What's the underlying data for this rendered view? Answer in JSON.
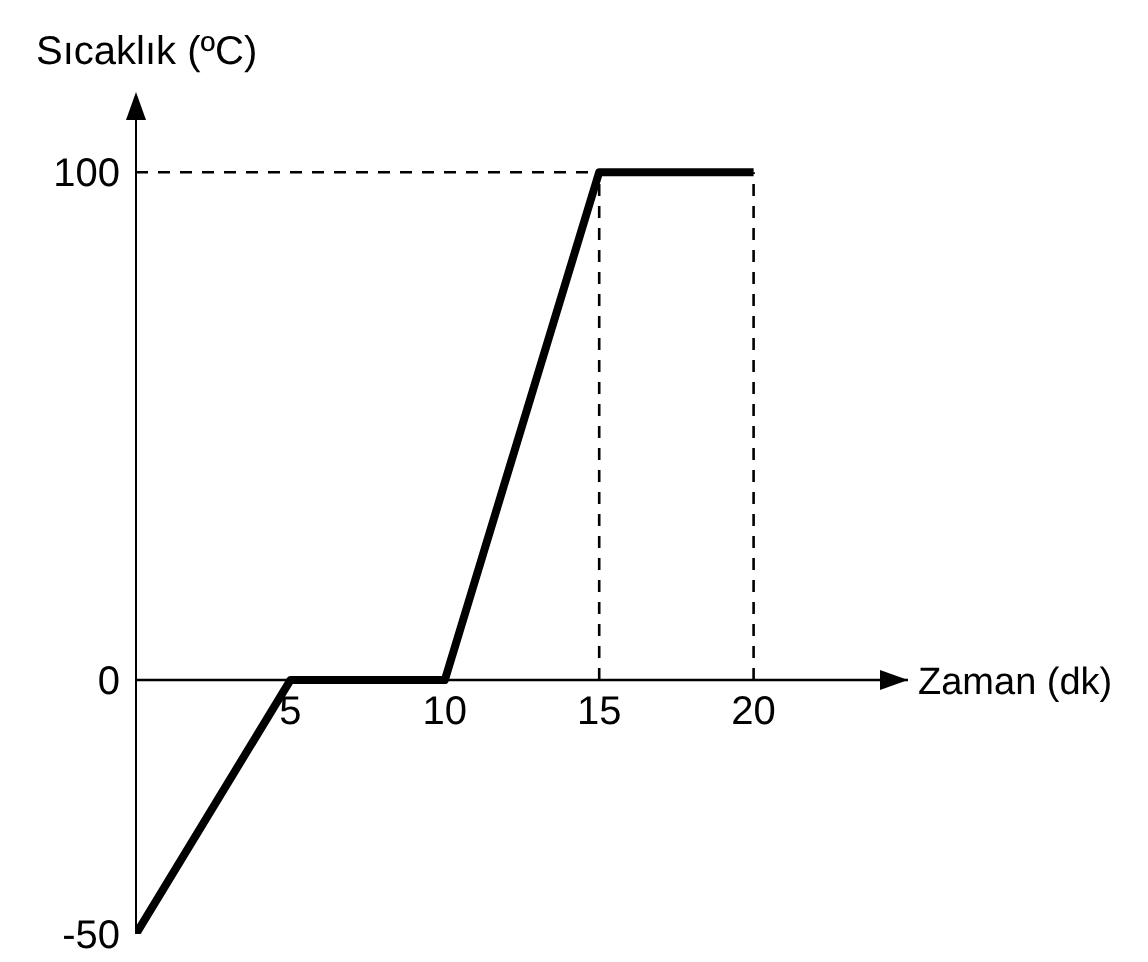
{
  "chart_data": {
    "type": "line",
    "xlabel": "Zaman (dk)",
    "ylabel": "Sıcaklık (ºC)",
    "x": [
      0,
      5,
      10,
      15,
      20
    ],
    "series": [
      {
        "color": "#000000",
        "values": [
          -50,
          0,
          0,
          100,
          100
        ]
      }
    ],
    "xlim": [
      0,
      25
    ],
    "ylim": [
      -50,
      115
    ],
    "xticks": [
      5,
      10,
      15,
      20
    ],
    "yticks": [
      -50,
      0,
      100
    ],
    "ref_lines": [
      {
        "axis": "y",
        "value": 100,
        "line_style": "dashed",
        "color": "#000000"
      },
      {
        "axis": "x",
        "value": 15,
        "line_style": "dashed",
        "color": "#000000"
      },
      {
        "axis": "x",
        "value": 20,
        "line_style": "dashed",
        "color": "#000000"
      }
    ],
    "grid": false,
    "legend": false,
    "marker": "none",
    "line_style": "solid"
  }
}
